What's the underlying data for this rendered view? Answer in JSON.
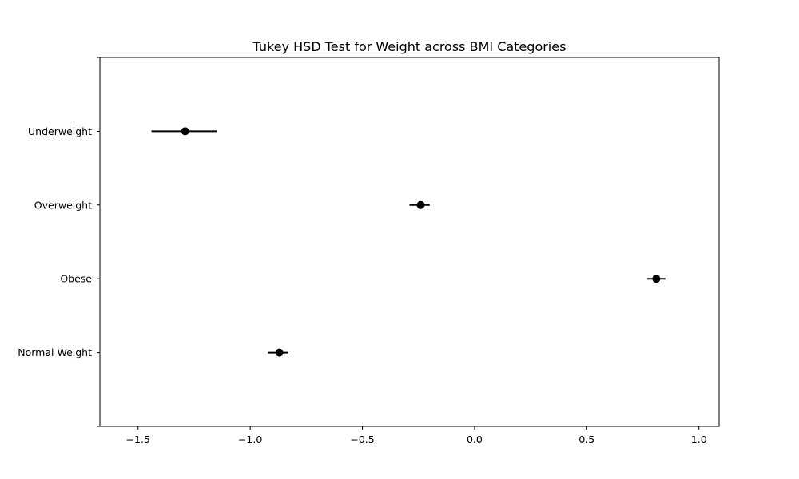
{
  "chart_data": {
    "type": "scatter",
    "subtype": "horizontal-errorbar",
    "title": "Tukey HSD Test for Weight across BMI Categories",
    "xlabel": "",
    "ylabel": "",
    "xlim": [
      -1.67,
      1.09
    ],
    "x_ticks": [
      -1.5,
      -1.0,
      -0.5,
      0.0,
      0.5,
      1.0
    ],
    "x_tick_labels": [
      "−1.5",
      "−1.0",
      "−0.5",
      "0.0",
      "0.5",
      "1.0"
    ],
    "categories": [
      "Normal Weight",
      "Obese",
      "Overweight",
      "Underweight"
    ],
    "means": [
      -0.87,
      0.81,
      -0.24,
      -1.29
    ],
    "ci_lower": [
      -0.92,
      0.77,
      -0.29,
      -1.44
    ],
    "ci_upper": [
      -0.83,
      0.85,
      -0.2,
      -1.15
    ],
    "y_range": [
      -1,
      4
    ],
    "grid": false,
    "legend": "none",
    "colors": {
      "marker": "#000000",
      "errorbar": "#000000",
      "axes": "#000000",
      "background": "#ffffff"
    }
  }
}
